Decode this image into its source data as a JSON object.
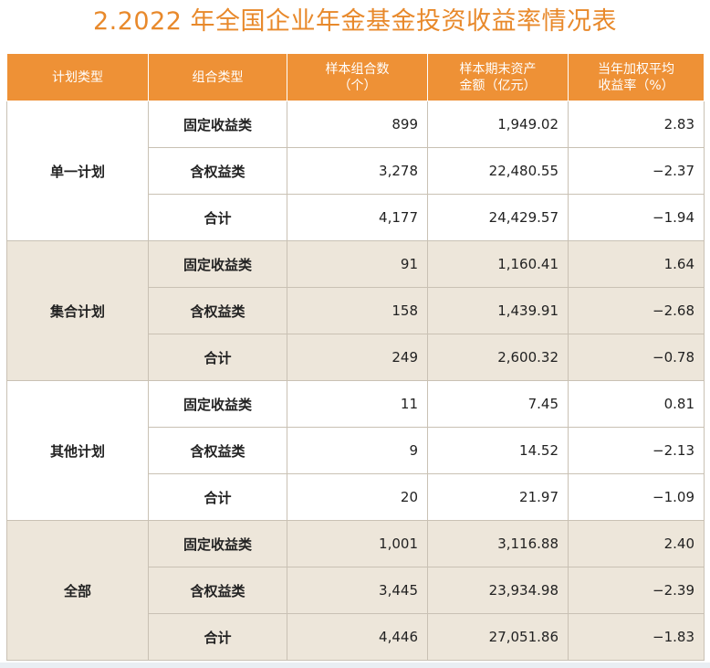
{
  "title": "2.2022 年全国企业年金基金投资收益率情况表",
  "headers": {
    "plan_type": "计划类型",
    "portfolio_type": "组合类型",
    "sample_count_line1": "样本组合数",
    "sample_count_line2": "（个）",
    "assets_line1": "样本期末资产",
    "assets_line2": "金额（亿元）",
    "return_line1": "当年加权平均",
    "return_line2": "收益率（%）"
  },
  "groups": [
    {
      "plan": "单一计划",
      "rows": [
        {
          "type": "固定收益类",
          "count": "899",
          "assets": "1,949.02",
          "return": "2.83"
        },
        {
          "type": "含权益类",
          "count": "3,278",
          "assets": "22,480.55",
          "return": "−2.37"
        },
        {
          "type": "合计",
          "count": "4,177",
          "assets": "24,429.57",
          "return": "−1.94"
        }
      ]
    },
    {
      "plan": "集合计划",
      "rows": [
        {
          "type": "固定收益类",
          "count": "91",
          "assets": "1,160.41",
          "return": "1.64"
        },
        {
          "type": "含权益类",
          "count": "158",
          "assets": "1,439.91",
          "return": "−2.68"
        },
        {
          "type": "合计",
          "count": "249",
          "assets": "2,600.32",
          "return": "−0.78"
        }
      ]
    },
    {
      "plan": "其他计划",
      "rows": [
        {
          "type": "固定收益类",
          "count": "11",
          "assets": "7.45",
          "return": "0.81"
        },
        {
          "type": "含权益类",
          "count": "9",
          "assets": "14.52",
          "return": "−2.13"
        },
        {
          "type": "合计",
          "count": "20",
          "assets": "21.97",
          "return": "−1.09"
        }
      ]
    },
    {
      "plan": "全部",
      "rows": [
        {
          "type": "固定收益类",
          "count": "1,001",
          "assets": "3,116.88",
          "return": "2.40"
        },
        {
          "type": "含权益类",
          "count": "3,445",
          "assets": "23,934.98",
          "return": "−2.39"
        },
        {
          "type": "合计",
          "count": "4,446",
          "assets": "27,051.86",
          "return": "−1.83"
        }
      ]
    }
  ],
  "colors": {
    "title": "#e8892b",
    "header_bg": "#ee9136",
    "shaded_row_bg": "#ede6da",
    "border": "#c9c1b4"
  }
}
